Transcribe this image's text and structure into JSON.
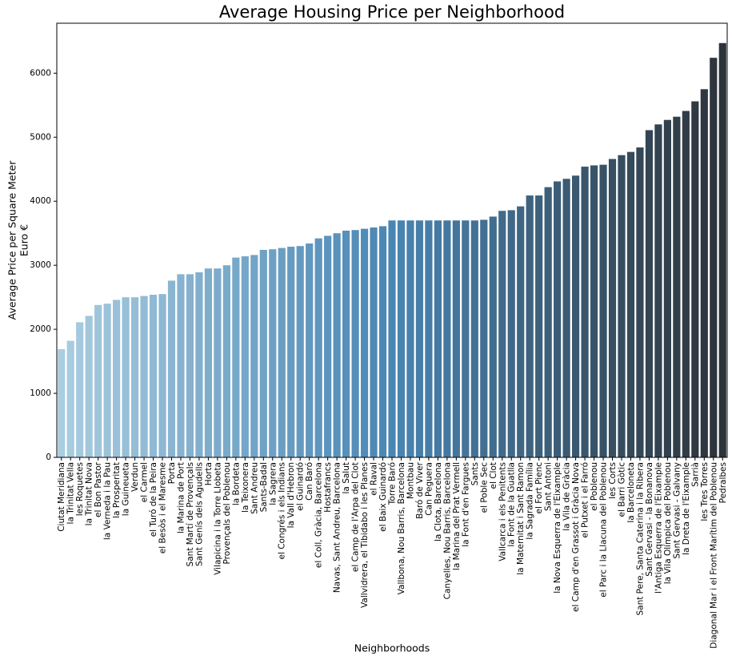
{
  "chart_data": {
    "type": "bar",
    "title": "Average Housing Price per Neighborhood",
    "xlabel": "Neighborhoods",
    "ylabel": [
      "Average Price per Square Meter",
      "Euro €"
    ],
    "categories": [
      "Ciutat Meridiana",
      "la Trinitat Vella",
      "les Roquetes",
      "la Trinitat Nova",
      "el Bon Pastor",
      "la Verneda i la Pau",
      "la Prosperitat",
      "la Guineueta",
      "Verdun",
      "el Carmel",
      "el Turó de la Peira",
      "el Besòs i el Maresme",
      "Porta",
      "la Marina de Port",
      "Sant Martí de Provençals",
      "Sant Genís dels Agudells",
      "Horta",
      "Vilapicina i la Torre Llobeta",
      "Provençals del Poblenou",
      "la Bordeta",
      "la Teixonera",
      "Sant Andreu",
      "Sants-Badal",
      "la Sagrera",
      "el Congrés i els Indians",
      "la Vall d'Hebron",
      "el Guinardó",
      "Can Baró",
      "el Coll, Gràcia, Barcelona",
      "Hostafrancs",
      "Navas, Sant Andreu, Barcelona",
      "la Salut",
      "el Camp de l'Arpa del Clot",
      "Vallvidrera, el Tibidabo i les Planes",
      "el Raval",
      "el Baix Guinardó",
      "Torre Baró",
      "Vallbona, Nou Barris, Barcelona",
      "Montbau",
      "Baró de Viver",
      "Can Peguera",
      "la Clota, Barcelona",
      "Canyelles, Nou Barris, Barcelona",
      "la Marina del Prat Vermell",
      "la Font d'en Fargues",
      "Sants",
      "el Poble Sec",
      "el Clot",
      "Vallcarca i els Penitents",
      "la Font de la Guatlla",
      "la Maternitat i Sant Ramon",
      "la Sagrada Família",
      "el Fort Pienc",
      "Sant Antoni",
      "la Nova Esquerra de l'Eixample",
      "la Vila de Gràcia",
      "el Camp d'en Grassot i Gràcia Nova",
      "el Putxet i el Farró",
      "el Poblenou",
      "el Parc i la Llacuna del Poblenou",
      "les Corts",
      "el Barri Gòtic",
      "la Barceloneta",
      "Sant Pere, Santa Caterina i la Ribera",
      "Sant Gervasi - la Bonanova",
      "l'Antiga Esquerra de l'Eixample",
      "la Vila Olímpica del Poblenou",
      "Sant Gervasi - Galvany",
      "la Dreta de l'Eixample",
      "Sarrià",
      "les Tres Torres",
      "Diagonal Mar i el Front Marítim del Poblenou",
      "Pedralbes"
    ],
    "values": [
      1690,
      1820,
      2110,
      2210,
      2380,
      2400,
      2460,
      2500,
      2500,
      2520,
      2540,
      2550,
      2760,
      2860,
      2860,
      2890,
      2950,
      2950,
      3000,
      3120,
      3140,
      3160,
      3240,
      3250,
      3270,
      3290,
      3300,
      3340,
      3420,
      3460,
      3500,
      3540,
      3550,
      3570,
      3590,
      3610,
      3700,
      3700,
      3700,
      3700,
      3700,
      3700,
      3700,
      3700,
      3700,
      3700,
      3710,
      3760,
      3850,
      3860,
      3920,
      4090,
      4090,
      4220,
      4310,
      4350,
      4400,
      4540,
      4560,
      4570,
      4660,
      4720,
      4770,
      4840,
      5110,
      5200,
      5270,
      5320,
      5410,
      5560,
      5750,
      6240,
      6470
    ],
    "palette": [
      "#aacde0",
      "#4a86b4",
      "#2d3339"
    ],
    "ylim": [
      0,
      6780
    ],
    "yticks": [
      0,
      1000,
      2000,
      3000,
      4000,
      5000,
      6000
    ],
    "grid": false
  }
}
